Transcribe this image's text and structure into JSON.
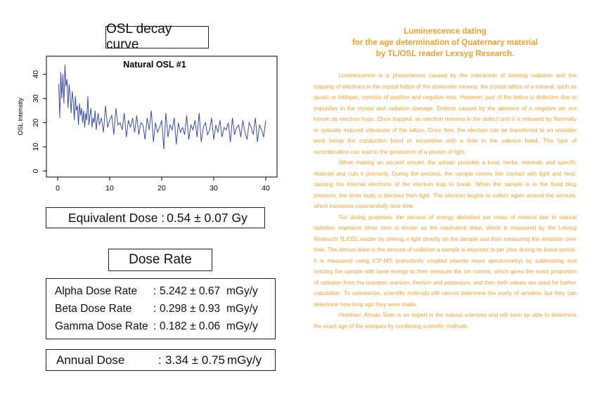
{
  "left": {
    "osl_title": "OSL decay curve",
    "equivalent_dose": {
      "label": "Equivalent Dose :",
      "value": "0.54 ± 0.07 Gy"
    },
    "dose_rate_title": "Dose Rate",
    "rates": [
      {
        "name": "Alpha Dose Rate",
        "colon": ":",
        "value": "5.242 ± 0.67",
        "unit": "mGy/y"
      },
      {
        "name": "Beta Dose Rate",
        "colon": ":",
        "value": "0.298 ± 0.93",
        "unit": "mGy/y"
      },
      {
        "name": "Gamma Dose Rate",
        "colon": ":",
        "value": "0.182 ± 0.06",
        "unit": "mGy/y"
      }
    ],
    "annual_dose": {
      "name": "Annual Dose",
      "colon": ":",
      "value": "3.34 ± 0.75",
      "unit": "mGy/y"
    }
  },
  "chart_data": {
    "type": "line",
    "title": "Natural OSL #1",
    "xlabel": "",
    "ylabel": "OSL intensity",
    "xlim": [
      0,
      40
    ],
    "ylim": [
      0,
      45
    ],
    "xticks": [
      "0",
      "10",
      "20",
      "30",
      "40"
    ],
    "yticks": [
      "0",
      "10",
      "20",
      "30",
      "40"
    ],
    "line_color": "#3b4fa8",
    "series": [
      {
        "x": [
          0.2,
          0.4,
          0.6,
          0.8,
          1.0,
          1.2,
          1.4,
          1.6,
          1.8,
          2.0,
          2.2,
          2.4,
          2.6,
          2.8,
          3.0,
          3.2,
          3.4,
          3.6,
          3.8,
          4.0,
          4.2,
          4.4,
          4.6,
          4.8,
          5.0,
          5.2,
          5.4,
          5.6,
          5.8,
          6.0,
          6.2,
          6.4,
          6.6,
          6.8,
          7.0,
          7.2,
          7.4,
          7.6,
          7.8,
          8.0,
          8.4,
          8.8,
          9.2,
          9.6,
          10.0,
          10.4,
          10.8,
          11.2,
          11.6,
          12.0,
          12.4,
          12.8,
          13.2,
          13.6,
          14.0,
          14.4,
          14.8,
          15.2,
          15.6,
          16.0,
          16.4,
          16.8,
          17.2,
          17.6,
          18.0,
          18.4,
          18.8,
          19.2,
          19.6,
          20.0,
          20.4,
          20.8,
          21.2,
          21.6,
          22.0,
          22.4,
          22.8,
          23.2,
          23.6,
          24.0,
          24.4,
          24.8,
          25.2,
          25.6,
          26.0,
          26.4,
          26.8,
          27.2,
          27.6,
          28.0,
          28.4,
          28.8,
          29.2,
          29.6,
          30.0,
          30.4,
          30.8,
          31.2,
          31.6,
          32.0,
          32.4,
          32.8,
          33.2,
          33.6,
          34.0,
          34.4,
          34.8,
          35.2,
          35.6,
          36.0,
          36.4,
          36.8,
          37.2,
          37.6,
          38.0,
          38.4,
          38.8,
          39.2,
          39.6,
          40.0
        ],
        "y": [
          36,
          22,
          41,
          30,
          40,
          28,
          44,
          35,
          38,
          26,
          36,
          31,
          24,
          33,
          29,
          21,
          31,
          25,
          27,
          19,
          28,
          23,
          26,
          20,
          25,
          18,
          24,
          21,
          31,
          19,
          23,
          26,
          18,
          22,
          20,
          25,
          17,
          21,
          24,
          19,
          22,
          16,
          27,
          18,
          21,
          23,
          15,
          26,
          19,
          20,
          17,
          24,
          14,
          21,
          18,
          22,
          16,
          23,
          15,
          20,
          19,
          13,
          22,
          17,
          25,
          12,
          20,
          16,
          18,
          21,
          9,
          24,
          14,
          19,
          17,
          22,
          11,
          20,
          16,
          18,
          15,
          23,
          13,
          19,
          17,
          21,
          14,
          24,
          12,
          18,
          20,
          15,
          17,
          22,
          13,
          19,
          16,
          21,
          14,
          18,
          17,
          20,
          12,
          22,
          15,
          18,
          19,
          14,
          21,
          16,
          13,
          20,
          18,
          15,
          22,
          12,
          19,
          17,
          14,
          21
        ]
      }
    ]
  },
  "right": {
    "title_lines": [
      "Luminescence dating",
      "for the age determination of Quaternary material",
      "by TL/OSL reader Lexsyg Research."
    ],
    "paragraphs": [
      "Luminescence is a phenomenon caused by the interaction of ionising radiation and the trapping of electrons in the crystal lattice of the dosimeter mineral. the crystal lattice of a mineral, such as quartz or feldspar, consists of positive and negative ions. However, part of the lattice is defective due to impurities in the crystal and radiation damage. Defects caused by the absence of a negative ion are known as electron traps. Once trapped, an electron remains in the defect until it is released by thermally or optically induced vibrations of the lattice. Once free, the electron can be transferred to an unstable level below the conduction band or recombine with a hole in the valence band. This type of recombination can lead to the generation of a photon of light.",
      "When making an ancient amulet, the artisan provides a bowl, herbs, minerals and specific material and cuts it precisely. During the process, the sample comes into contact with light and heat, causing the internal electrons of the electron trap to break. When the sample is in the fixed blog pressure, the inner body is blocked from light. The electron begins to collect again around the amount, which increases exponentially over time.",
      "For dating purposes, the amount of energy absorbed per mass of mineral due to natural radiation exposure since zero is known as the equivalent dose, which is measured by the Lexsyg Research TL/OSL reader by shining a light directly on the sample and then measuring the emission over time. The annual dose is the amount of radiation a sample is exposed to per year during its burial period. It is measured using ICP-MS (inductively coupled plasma mass spectrometry) by sublimating and ionizing the sample with laser energy to then measure the ion current, which gives the exact proportion of radiation from the isotopes uranium, thorium and potassium, and then both values are used for further calculation. To summarise, scientific methods still cannot determine the purity of amulets, but they can determine how long ago they were made.",
      "However, Amata Siam is an expert in the natural sciences and will soon be able to determine the exact age of the antiques by combining scientific methods."
    ]
  }
}
